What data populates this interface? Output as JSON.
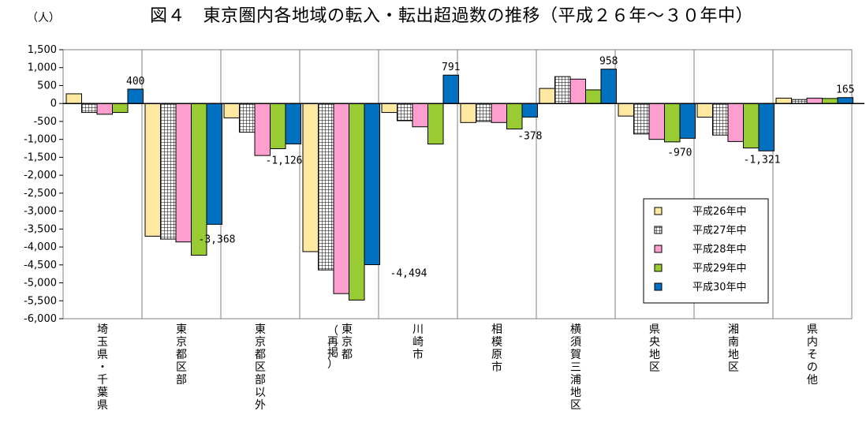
{
  "unit_label": "（人）",
  "chart_data": {
    "type": "bar",
    "title": "図４　東京圏内各地域の転入・転出超過数の推移（平成２６年～３０年中）",
    "ylabel": "（人）",
    "ylim": [
      -6000,
      1500
    ],
    "yticks": [
      1500,
      1000,
      500,
      0,
      -500,
      -1000,
      -1500,
      -2000,
      -2500,
      -3000,
      -3500,
      -4000,
      -4500,
      -5000,
      -5500,
      -6000
    ],
    "ytick_labels": [
      "1,500",
      "1,000",
      "500",
      "0",
      "-500",
      "-1,000",
      "-1,500",
      "-2,000",
      "-2,500",
      "-3,000",
      "-3,500",
      "-4,000",
      "-4,500",
      "-5,000",
      "-5,500",
      "-6,000"
    ],
    "categories": [
      "埼玉県・千葉県",
      "東京都区部",
      "東京都区部以外",
      "東京都（再掲）",
      "川崎市",
      "相模原市",
      "横須賀三浦地区",
      "県央地区",
      "湘南地区",
      "県内その他"
    ],
    "category_lines": [
      [
        "埼",
        "玉",
        "県",
        "・",
        "千",
        "葉",
        "県"
      ],
      [
        "東",
        "京",
        "都",
        "区",
        "部"
      ],
      [
        "東",
        "京",
        "都",
        "区",
        "部",
        "以",
        "外"
      ],
      [
        "東",
        "京",
        "都"
      ],
      [
        "川",
        "崎",
        "市"
      ],
      [
        "相",
        "模",
        "原",
        "市"
      ],
      [
        "横",
        "須",
        "賀",
        "三",
        "浦",
        "地",
        "区"
      ],
      [
        "県",
        "央",
        "地",
        "区"
      ],
      [
        "湘",
        "南",
        "地",
        "区"
      ],
      [
        "県",
        "内",
        "そ",
        "の",
        "他"
      ]
    ],
    "series": [
      {
        "name": "平成26年中",
        "color": "#FFE9A0",
        "pattern": "solid",
        "values": [
          270,
          -3700,
          -400,
          -4130,
          -250,
          -530,
          420,
          -350,
          -380,
          150
        ]
      },
      {
        "name": "平成27年中",
        "color": "#FFFFFF",
        "pattern": "grid",
        "values": [
          -250,
          -3780,
          -800,
          -4640,
          -480,
          -500,
          750,
          -850,
          -880,
          110
        ]
      },
      {
        "name": "平成28年中",
        "color": "#FF9FD0",
        "pattern": "solid",
        "values": [
          -300,
          -3860,
          -1450,
          -5300,
          -650,
          -530,
          680,
          -1000,
          -1060,
          150
        ]
      },
      {
        "name": "平成29年中",
        "color": "#99CC33",
        "pattern": "solid",
        "values": [
          -250,
          -4230,
          -1260,
          -5480,
          -1130,
          -710,
          380,
          -1070,
          -1240,
          140
        ]
      },
      {
        "name": "平成30年中",
        "color": "#0070C0",
        "pattern": "solid",
        "values": [
          400,
          -3368,
          -1126,
          -4494,
          791,
          -378,
          958,
          -970,
          -1321,
          165
        ]
      }
    ],
    "data_labels": [
      "400",
      "-3,368",
      "-1,126",
      "-4,494",
      "791",
      "-378",
      "958",
      "-970",
      "-1,321",
      "165"
    ],
    "grid": false,
    "legend_position": "bottom-right"
  }
}
